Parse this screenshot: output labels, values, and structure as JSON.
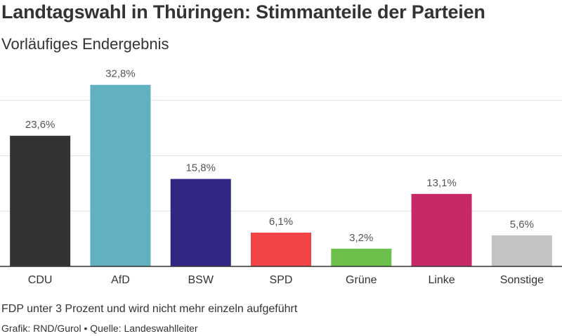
{
  "title": "Landtagswahl in Thüringen: Stimmanteile der Parteien",
  "subtitle": "Vorläufiges Endergebnis",
  "footer": {
    "note": "FDP unter 3 Prozent und wird nicht mehr einzeln aufgeführt",
    "source": "Grafik: RND/Gurol • Quelle: Landeswahlleiter"
  },
  "colors": {
    "CDU": "#333333",
    "AfD": "#62b1c1",
    "BSW": "#312682",
    "SPD": "#f44448",
    "Grüne": "#6cbf4b",
    "Linke": "#c72868",
    "Sonstige": "#c3c3c3",
    "grid": "#e0e0e0",
    "axis": "#333333"
  },
  "chart_data": {
    "type": "bar",
    "categories": [
      "CDU",
      "AfD",
      "BSW",
      "SPD",
      "Grüne",
      "Linke",
      "Sonstige"
    ],
    "values": [
      23.6,
      32.8,
      15.8,
      6.1,
      3.2,
      13.1,
      5.6
    ],
    "data_labels": [
      "23,6%",
      "32,8%",
      "15,8%",
      "6,1%",
      "3,2%",
      "13,1%",
      "5,6%"
    ],
    "ylim": [
      0,
      40
    ],
    "grid": true,
    "legend": "none"
  }
}
